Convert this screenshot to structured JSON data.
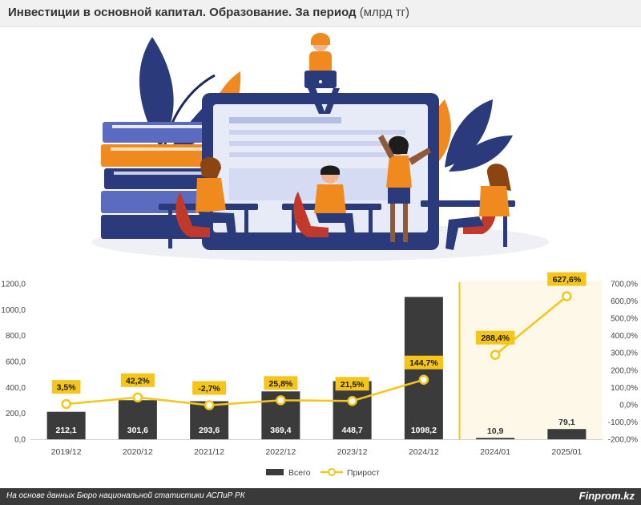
{
  "header": {
    "title_bold": "Инвестиции в основной капитал. Образование. За период",
    "title_unit": "(млрд тг)"
  },
  "footer": {
    "source": "На основе данных Бюро национальной статистики АСПиР РК",
    "brand": "Finprom.kz"
  },
  "colors": {
    "bar": "#3b3b3b",
    "line": "#f5c518",
    "label_bg": "#f5c518",
    "separator": "#f5c518",
    "highlight_bg": "#fdf8e8"
  },
  "chart_data": {
    "type": "bar+line",
    "categories": [
      "2019/12",
      "2020/12",
      "2021/12",
      "2022/12",
      "2023/12",
      "2024/12",
      "2024/01",
      "2025/01"
    ],
    "series": [
      {
        "name": "Всего",
        "type": "bar",
        "axis": "left",
        "values": [
          212.1,
          301.6,
          293.6,
          369.4,
          448.7,
          1098.2,
          10.9,
          79.1
        ],
        "labels": [
          "212,1",
          "301,6",
          "293,6",
          "369,4",
          "448,7",
          "1098,2",
          "10,9",
          "79,1"
        ]
      },
      {
        "name": "Прирост",
        "type": "line",
        "axis": "right",
        "segments": [
          [
            0,
            5
          ],
          [
            6,
            7
          ]
        ],
        "values": [
          3.5,
          42.2,
          -2.7,
          25.8,
          21.5,
          144.7,
          288.4,
          627.6
        ],
        "labels": [
          "3,5%",
          "42,2%",
          "-2,7%",
          "25,8%",
          "21,5%",
          "144,7%",
          "288,4%",
          "627,6%"
        ]
      }
    ],
    "left_axis": {
      "min": 0,
      "max": 1200,
      "step": 200,
      "ticks": [
        "0,0",
        "200,0",
        "400,0",
        "600,0",
        "800,0",
        "1000,0",
        "1200,0"
      ]
    },
    "right_axis": {
      "min": -200,
      "max": 700,
      "step": 100,
      "ticks": [
        "-200,0%",
        "-100,0%",
        "0,0%",
        "100,0%",
        "200,0%",
        "300,0%",
        "400,0%",
        "500,0%",
        "600,0%",
        "700,0%"
      ]
    },
    "legend": {
      "position": "bottom",
      "items": [
        "Всего",
        "Прирост"
      ]
    },
    "grid": false
  }
}
